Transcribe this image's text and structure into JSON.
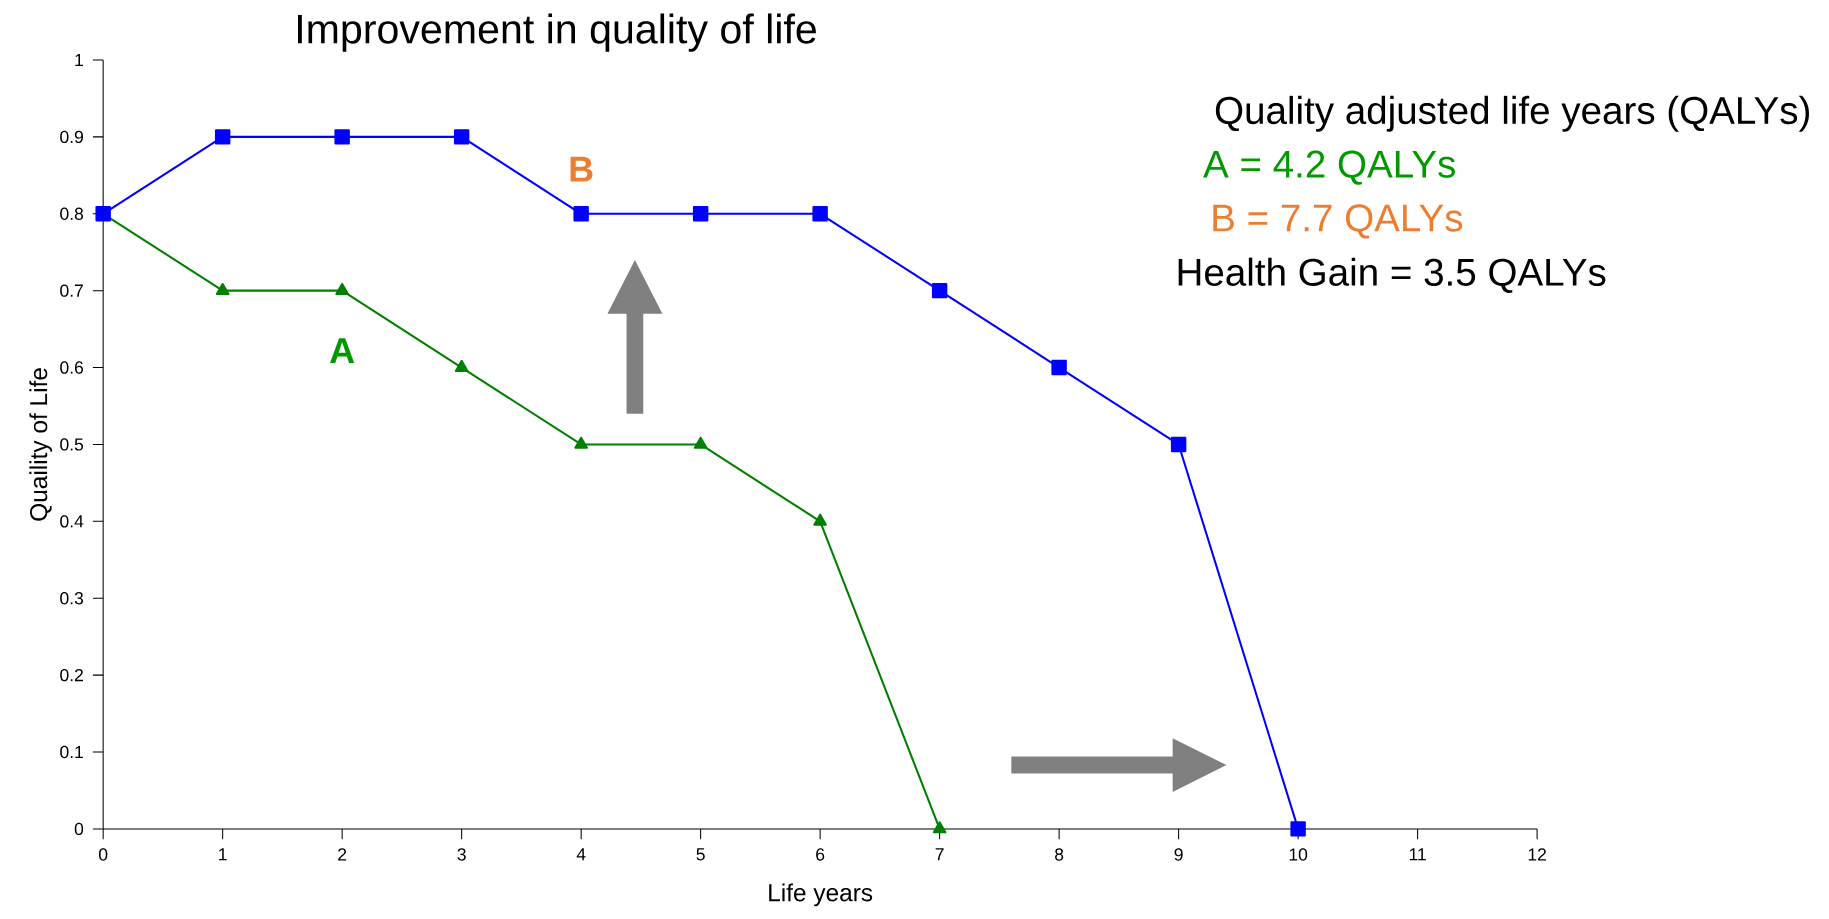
{
  "chart_data": {
    "type": "line",
    "title": "Improvement in quality of life",
    "xlabel": "Life years",
    "ylabel": "Quaility of Life",
    "x": [
      0,
      1,
      2,
      3,
      4,
      5,
      6,
      7,
      8,
      9,
      10
    ],
    "series": [
      {
        "name": "A",
        "color": "#008000",
        "marker": "triangle",
        "values": [
          0.8,
          0.7,
          0.7,
          0.6,
          0.5,
          0.5,
          0.4,
          0,
          null,
          null,
          null
        ]
      },
      {
        "name": "B",
        "color": "#0000ff",
        "marker": "square",
        "values": [
          0.8,
          0.9,
          0.9,
          0.9,
          0.8,
          0.8,
          0.8,
          0.7,
          0.6,
          0.5,
          0
        ]
      }
    ],
    "annotations": [
      "Quality adjusted life years (QALYs)",
      "A = 4.2 QALYs",
      "B = 7.7 QALYs",
      "Health Gain = 3.5 QALYs"
    ],
    "xlim": [
      0,
      12
    ],
    "ylim": [
      0,
      1
    ],
    "xticks": [
      0,
      1,
      2,
      3,
      4,
      5,
      6,
      7,
      8,
      9,
      10,
      11,
      12
    ],
    "yticks": [
      0,
      0.1,
      0.2,
      0.3,
      0.4,
      0.5,
      0.6,
      0.7,
      0.8,
      0.9,
      1
    ],
    "grid": false,
    "line_style": "solid"
  }
}
